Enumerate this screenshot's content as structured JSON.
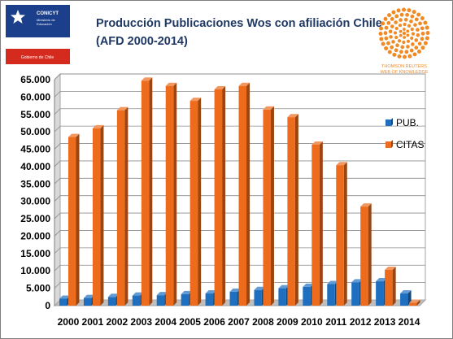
{
  "header": {
    "title_line1": "Producción Publicaciones Wos con afiliación Chile",
    "title_line2": "(AFD 2000-2014)"
  },
  "logo_left": {
    "org": "CONICYT",
    "line2": "Ministerio de",
    "line3": "Educación",
    "footer": "Gobierno de Chile",
    "colors": {
      "blue": "#1b3f8b",
      "red": "#d52b1e",
      "white": "#ffffff"
    }
  },
  "logo_right": {
    "line1": "THOMSON REUTERS",
    "line2": "WEB OF KNOWLEDGE",
    "color": "#f08a24"
  },
  "chart_data": {
    "type": "bar",
    "categories": [
      "2000",
      "2001",
      "2002",
      "2003",
      "2004",
      "2005",
      "2006",
      "2007",
      "2008",
      "2009",
      "2010",
      "2011",
      "2012",
      "2013",
      "2014"
    ],
    "series": [
      {
        "name": "PUB.",
        "color": "#1f6fc0",
        "values": [
          2000,
          2200,
          2500,
          2900,
          3000,
          3300,
          3500,
          4000,
          4500,
          5000,
          5400,
          6200,
          6700,
          7000,
          3500
        ]
      },
      {
        "name": "CITAS",
        "color": "#ec6b1c",
        "values": [
          48500,
          51000,
          56200,
          64700,
          63200,
          58900,
          62200,
          63200,
          56400,
          54200,
          46300,
          40400,
          28500,
          10300,
          800
        ]
      }
    ],
    "ylim": [
      0,
      65000
    ],
    "y_ticks": [
      "0",
      "5.000",
      "10.000",
      "15.000",
      "20.000",
      "25.000",
      "30.000",
      "35.000",
      "40.000",
      "45.000",
      "50.000",
      "55.000",
      "60.000",
      "65.000"
    ],
    "grid": true,
    "legend_position": "right",
    "style": "3d-bar"
  }
}
